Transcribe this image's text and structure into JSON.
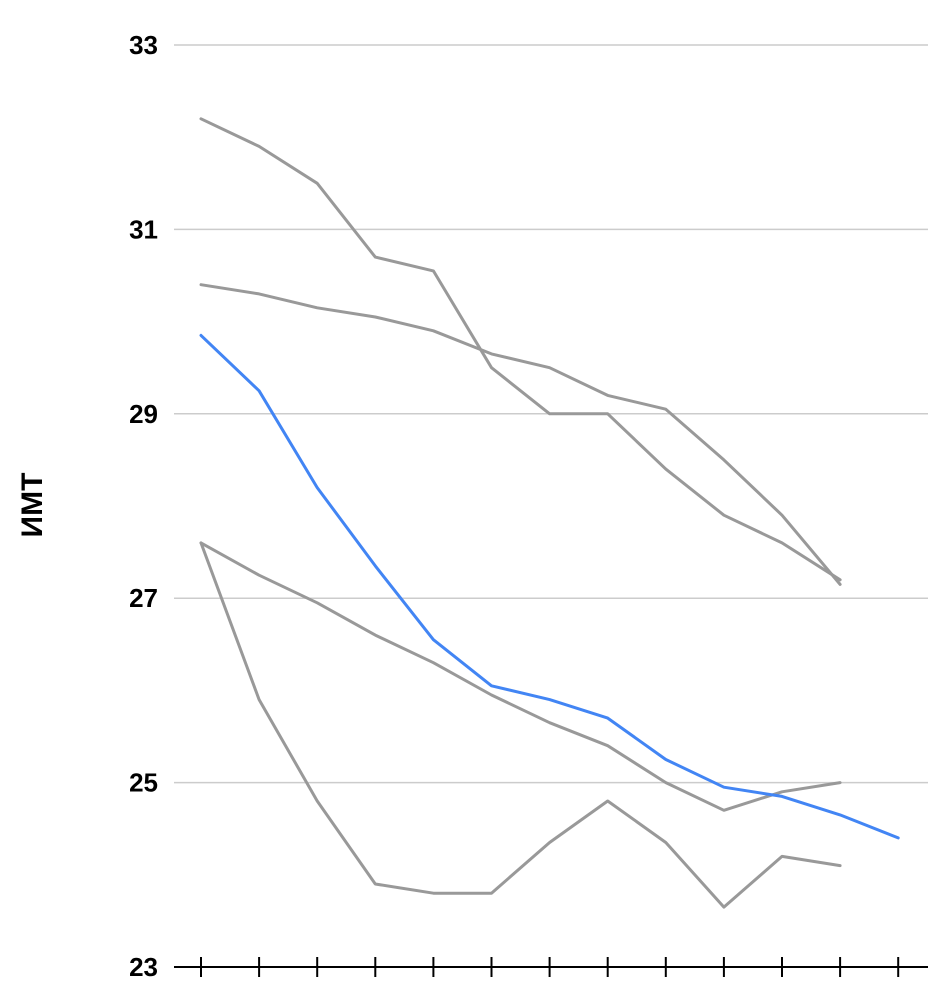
{
  "chart_data": {
    "type": "line",
    "ylabel": "ИМТ",
    "xlabel": "",
    "ylim": [
      23,
      33
    ],
    "yticks": [
      "23",
      "25",
      "27",
      "29",
      "31",
      "33"
    ],
    "x_count": 13,
    "grid": true,
    "series": [
      {
        "color": "#999999",
        "values": [
          32.2,
          31.9,
          31.5,
          30.7,
          30.55,
          29.5,
          29.0,
          29.0,
          28.4,
          27.9,
          27.6,
          27.2
        ]
      },
      {
        "color": "#999999",
        "values": [
          30.4,
          30.3,
          30.15,
          30.05,
          29.9,
          29.65,
          29.5,
          29.2,
          29.05,
          28.5,
          27.9,
          27.15
        ]
      },
      {
        "color": "#999999",
        "values": [
          27.6,
          27.25,
          26.95,
          26.6,
          26.3,
          25.95,
          25.65,
          25.4,
          25.0,
          24.7,
          24.9,
          25.0
        ]
      },
      {
        "color": "#999999",
        "values": [
          27.6,
          25.9,
          24.8,
          23.9,
          23.8,
          23.8,
          24.35,
          24.8,
          24.35,
          23.65,
          24.2,
          24.1
        ]
      },
      {
        "color": "#4285f4",
        "values": [
          29.85,
          29.25,
          28.2,
          27.35,
          26.55,
          26.05,
          25.9,
          25.7,
          25.25,
          24.95,
          24.85,
          24.65,
          24.4
        ]
      }
    ]
  }
}
